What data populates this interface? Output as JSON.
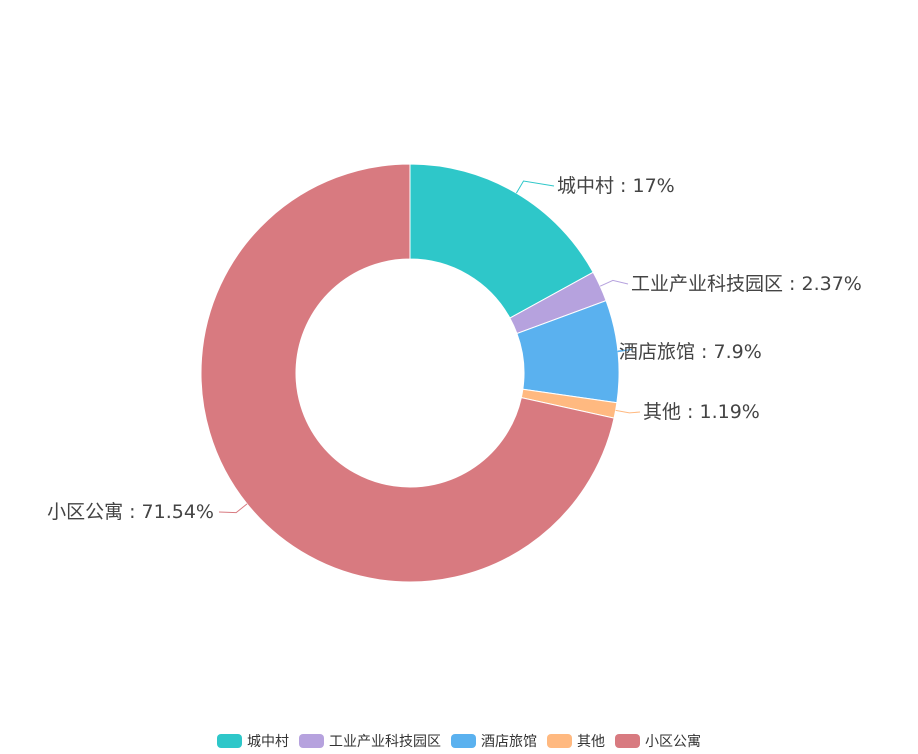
{
  "chart_data": {
    "type": "pie",
    "variant": "donut",
    "label_format": "{name} : {percent}%",
    "slices": [
      {
        "name": "城中村",
        "percent": 17,
        "color": "#2ec7c9"
      },
      {
        "name": "工业产业科技园区",
        "percent": 2.37,
        "color": "#b6a2de"
      },
      {
        "name": "酒店旅馆",
        "percent": 7.9,
        "color": "#5ab1ef"
      },
      {
        "name": "其他",
        "percent": 1.19,
        "color": "#ffb980"
      },
      {
        "name": "小区公寓",
        "percent": 71.54,
        "color": "#d87a80"
      }
    ],
    "legend": {
      "position": "bottom",
      "entries": [
        "城中村",
        "工业产业科技园区",
        "酒店旅馆",
        "其他",
        "小区公寓"
      ]
    }
  }
}
